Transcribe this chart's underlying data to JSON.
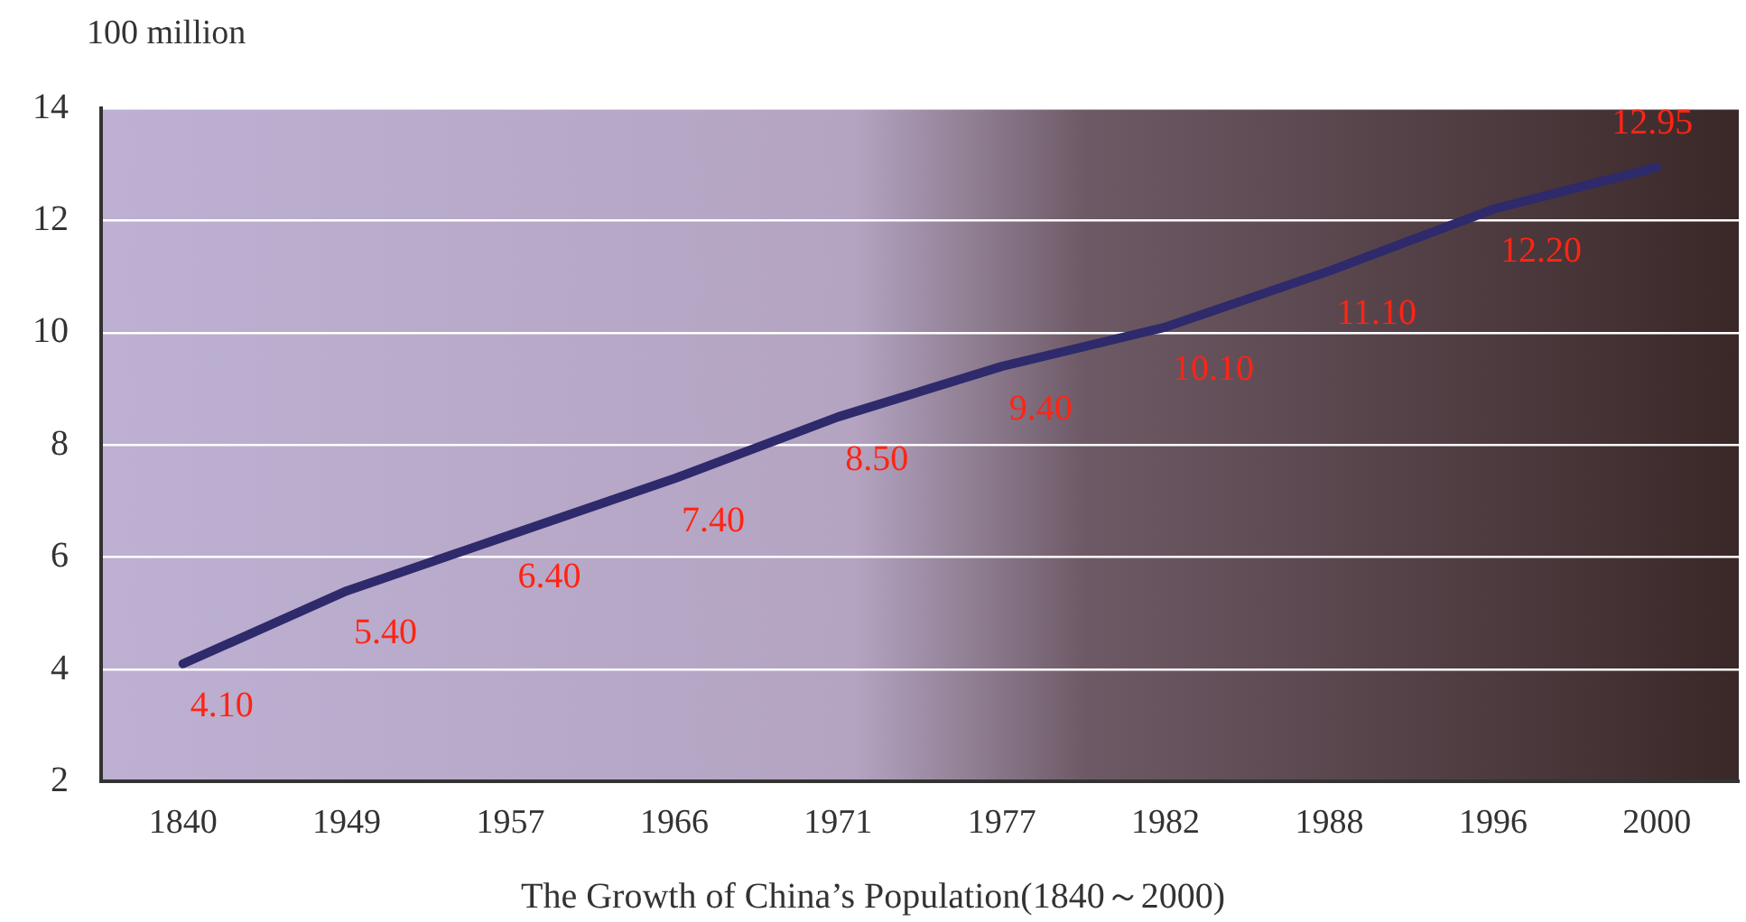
{
  "chart_data": {
    "type": "line",
    "ylabel": "100 million",
    "xlabel": "The Growth of China’s Population(1840～2000)",
    "categories": [
      "1840",
      "1949",
      "1957",
      "1966",
      "1971",
      "1977",
      "1982",
      "1988",
      "1996",
      "2000"
    ],
    "series": [
      {
        "color": "#2e2a6b",
        "values": [
          4.1,
          5.4,
          6.4,
          7.4,
          8.5,
          9.4,
          10.1,
          11.1,
          12.2,
          12.95
        ],
        "value_labels": [
          "4.10",
          "5.40",
          "6.40",
          "7.40",
          "8.50",
          "9.40",
          "10.10",
          "11.10",
          "12.20",
          "12.95"
        ]
      }
    ],
    "ylim": [
      2,
      14
    ],
    "yticks": [
      2,
      4,
      6,
      8,
      10,
      12,
      14
    ],
    "grid": "y",
    "legend": false,
    "marker": "none",
    "line_style": "solid"
  }
}
